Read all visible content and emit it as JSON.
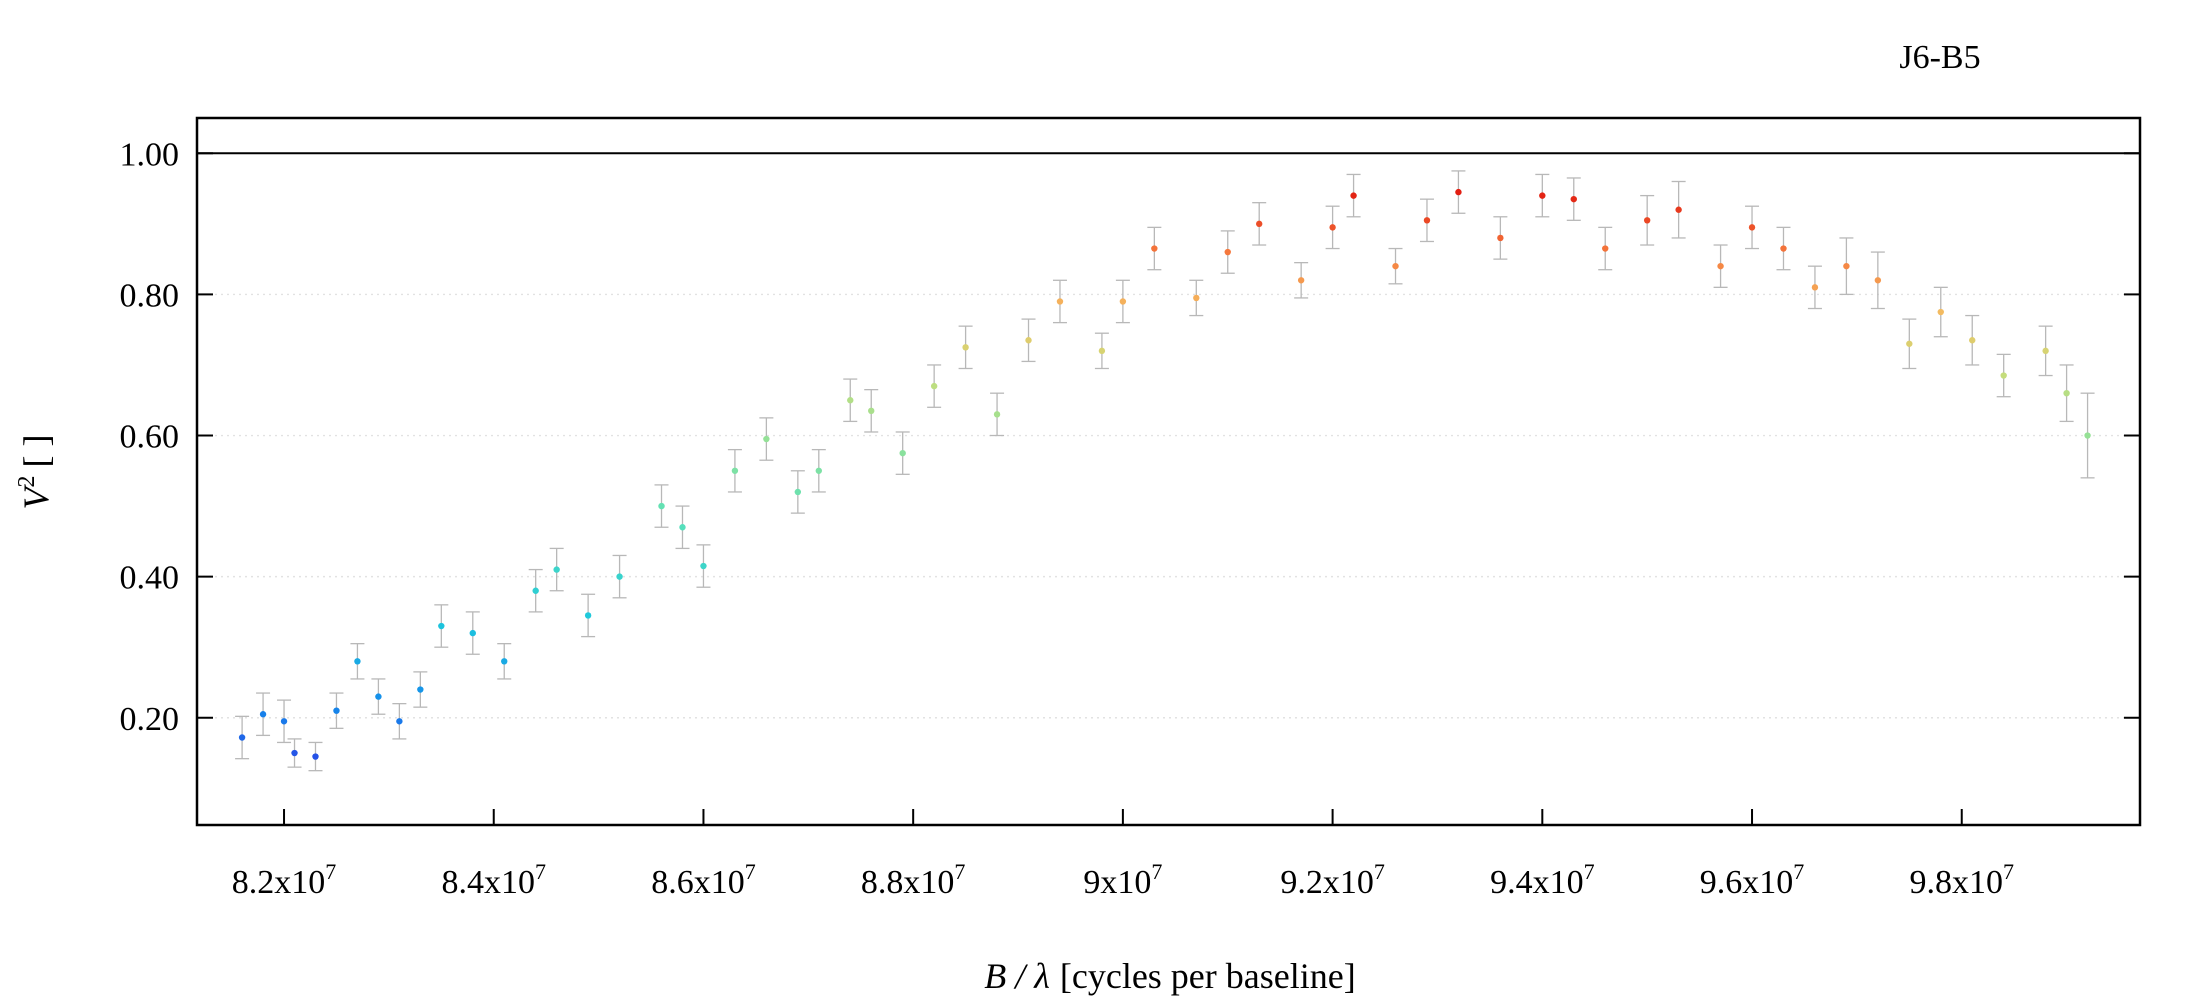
{
  "chart_data": {
    "type": "scatter",
    "title": "J6-B5",
    "xlabel": "B / λ [cycles per baseline]",
    "xlabel_var": "B / λ",
    "xlabel_unit": "[cycles per baseline]",
    "ylabel_var": "V",
    "ylabel_exp": "2",
    "ylabel_unit": "[ ]",
    "xlim": [
      81170000,
      99700000
    ],
    "ylim": [
      0.048,
      1.05
    ],
    "x_ticks": [
      {
        "value": 82000000,
        "mantissa": "8.2x10",
        "exp": "7"
      },
      {
        "value": 84000000,
        "mantissa": "8.4x10",
        "exp": "7"
      },
      {
        "value": 86000000,
        "mantissa": "8.6x10",
        "exp": "7"
      },
      {
        "value": 88000000,
        "mantissa": "8.8x10",
        "exp": "7"
      },
      {
        "value": 90000000,
        "mantissa": "9x10",
        "exp": "7"
      },
      {
        "value": 92000000,
        "mantissa": "9.2x10",
        "exp": "7"
      },
      {
        "value": 94000000,
        "mantissa": "9.4x10",
        "exp": "7"
      },
      {
        "value": 96000000,
        "mantissa": "9.6x10",
        "exp": "7"
      },
      {
        "value": 98000000,
        "mantissa": "9.8x10",
        "exp": "7"
      }
    ],
    "y_ticks": [
      {
        "value": 0.2,
        "label": "0.20"
      },
      {
        "value": 0.4,
        "label": "0.40"
      },
      {
        "value": 0.6,
        "label": "0.60"
      },
      {
        "value": 0.8,
        "label": "0.80"
      },
      {
        "value": 1.0,
        "label": "1.00"
      }
    ],
    "reference_line": 1.0,
    "grid": "horizontal-dotted",
    "point_color": "rainbow-by-V2",
    "error_bar_color": "#b8b8b8",
    "points": [
      [
        81.6,
        0.172,
        0.03
      ],
      [
        81.8,
        0.205,
        0.03
      ],
      [
        82.0,
        0.195,
        0.03
      ],
      [
        82.1,
        0.15,
        0.02
      ],
      [
        82.3,
        0.145,
        0.02
      ],
      [
        82.5,
        0.21,
        0.025
      ],
      [
        82.7,
        0.28,
        0.025
      ],
      [
        82.9,
        0.23,
        0.025
      ],
      [
        83.1,
        0.195,
        0.025
      ],
      [
        83.3,
        0.24,
        0.025
      ],
      [
        83.5,
        0.33,
        0.03
      ],
      [
        83.8,
        0.32,
        0.03
      ],
      [
        84.1,
        0.28,
        0.025
      ],
      [
        84.4,
        0.38,
        0.03
      ],
      [
        84.6,
        0.41,
        0.03
      ],
      [
        84.9,
        0.345,
        0.03
      ],
      [
        85.2,
        0.4,
        0.03
      ],
      [
        85.6,
        0.5,
        0.03
      ],
      [
        85.8,
        0.47,
        0.03
      ],
      [
        86.0,
        0.415,
        0.03
      ],
      [
        86.3,
        0.55,
        0.03
      ],
      [
        86.6,
        0.595,
        0.03
      ],
      [
        86.9,
        0.52,
        0.03
      ],
      [
        87.1,
        0.55,
        0.03
      ],
      [
        87.4,
        0.65,
        0.03
      ],
      [
        87.6,
        0.635,
        0.03
      ],
      [
        87.9,
        0.575,
        0.03
      ],
      [
        88.2,
        0.67,
        0.03
      ],
      [
        88.5,
        0.725,
        0.03
      ],
      [
        88.8,
        0.63,
        0.03
      ],
      [
        89.1,
        0.735,
        0.03
      ],
      [
        89.4,
        0.79,
        0.03
      ],
      [
        89.8,
        0.72,
        0.025
      ],
      [
        90.0,
        0.79,
        0.03
      ],
      [
        90.3,
        0.865,
        0.03
      ],
      [
        90.7,
        0.795,
        0.025
      ],
      [
        91.0,
        0.86,
        0.03
      ],
      [
        91.3,
        0.9,
        0.03
      ],
      [
        91.7,
        0.82,
        0.025
      ],
      [
        92.0,
        0.895,
        0.03
      ],
      [
        92.2,
        0.94,
        0.03
      ],
      [
        92.6,
        0.84,
        0.025
      ],
      [
        92.9,
        0.905,
        0.03
      ],
      [
        93.2,
        0.945,
        0.03
      ],
      [
        93.6,
        0.88,
        0.03
      ],
      [
        94.0,
        0.94,
        0.03
      ],
      [
        94.3,
        0.935,
        0.03
      ],
      [
        94.6,
        0.865,
        0.03
      ],
      [
        95.0,
        0.905,
        0.035
      ],
      [
        95.3,
        0.92,
        0.04
      ],
      [
        95.7,
        0.84,
        0.03
      ],
      [
        96.0,
        0.895,
        0.03
      ],
      [
        96.3,
        0.865,
        0.03
      ],
      [
        96.6,
        0.81,
        0.03
      ],
      [
        96.9,
        0.84,
        0.04
      ],
      [
        97.2,
        0.82,
        0.04
      ],
      [
        97.5,
        0.73,
        0.035
      ],
      [
        97.8,
        0.775,
        0.035
      ],
      [
        98.1,
        0.735,
        0.035
      ],
      [
        98.4,
        0.685,
        0.03
      ],
      [
        98.8,
        0.72,
        0.035
      ],
      [
        99.0,
        0.66,
        0.04
      ],
      [
        99.2,
        0.6,
        0.06
      ]
    ]
  }
}
